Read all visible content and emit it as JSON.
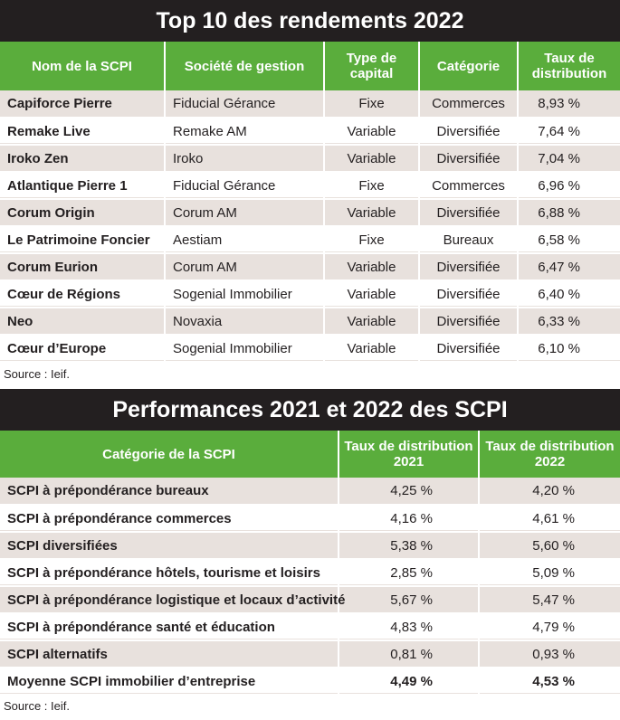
{
  "top10": {
    "title": "Top 10 des rendements 2022",
    "headers": {
      "name": "Nom de la SCPI",
      "company": "Société de gestion",
      "capital": "Type de capital",
      "category": "Catégorie",
      "rate": "Taux de distribution"
    },
    "rows": [
      {
        "name": "Capiforce Pierre",
        "company": "Fiducial Gérance",
        "capital": "Fixe",
        "category": "Commerces",
        "rate": "8,93 %"
      },
      {
        "name": "Remake Live",
        "company": "Remake AM",
        "capital": "Variable",
        "category": "Diversifiée",
        "rate": "7,64 %"
      },
      {
        "name": "Iroko Zen",
        "company": "Iroko",
        "capital": "Variable",
        "category": "Diversifiée",
        "rate": "7,04 %"
      },
      {
        "name": "Atlantique Pierre 1",
        "company": "Fiducial Gérance",
        "capital": "Fixe",
        "category": "Commerces",
        "rate": "6,96 %"
      },
      {
        "name": "Corum Origin",
        "company": "Corum AM",
        "capital": "Variable",
        "category": "Diversifiée",
        "rate": "6,88 %"
      },
      {
        "name": "Le Patrimoine Foncier",
        "company": "Aestiam",
        "capital": "Fixe",
        "category": "Bureaux",
        "rate": "6,58 %"
      },
      {
        "name": "Corum Eurion",
        "company": "Corum AM",
        "capital": "Variable",
        "category": "Diversifiée",
        "rate": "6,47 %"
      },
      {
        "name": "Cœur de Régions",
        "company": "Sogenial Immobilier",
        "capital": "Variable",
        "category": "Diversifiée",
        "rate": "6,40 %"
      },
      {
        "name": "Neo",
        "company": "Novaxia",
        "capital": "Variable",
        "category": "Diversifiée",
        "rate": "6,33 %"
      },
      {
        "name": "Cœur d’Europe",
        "company": "Sogenial Immobilier",
        "capital": "Variable",
        "category": "Diversifiée",
        "rate": "6,10 %"
      }
    ],
    "source": "Source : Ieif."
  },
  "performances": {
    "title": "Performances 2021 et 2022 des SCPI",
    "headers": {
      "category": "Catégorie de la SCPI",
      "rate2021": "Taux de distribution 2021",
      "rate2022": "Taux de distribution 2022"
    },
    "rows": [
      {
        "category": "SCPI à prépondérance bureaux",
        "rate2021": "4,25 %",
        "rate2022": "4,20 %"
      },
      {
        "category": "SCPI à prépondérance commerces",
        "rate2021": "4,16 %",
        "rate2022": "4,61 %"
      },
      {
        "category": "SCPI diversifiées",
        "rate2021": "5,38 %",
        "rate2022": "5,60 %"
      },
      {
        "category": "SCPI à prépondérance hôtels, tourisme et loisirs",
        "rate2021": "2,85 %",
        "rate2022": "5,09 %"
      },
      {
        "category": "SCPI à prépondérance logistique et locaux d’activité",
        "rate2021": "5,67 %",
        "rate2022": "5,47 %"
      },
      {
        "category": "SCPI à prépondérance santé et éducation",
        "rate2021": "4,83 %",
        "rate2022": "4,79 %"
      },
      {
        "category": "SCPI alternatifs",
        "rate2021": "0,81 %",
        "rate2022": "0,93 %"
      },
      {
        "category": "Moyenne SCPI immobilier d’entreprise",
        "rate2021": "4,49 %",
        "rate2022": "4,53 %",
        "emphasis": true
      }
    ],
    "source": "Source : Ieif."
  },
  "colors": {
    "title_background": "#231f20",
    "header_background": "#5aad3c",
    "stripe_background": "#e8e1dd"
  }
}
